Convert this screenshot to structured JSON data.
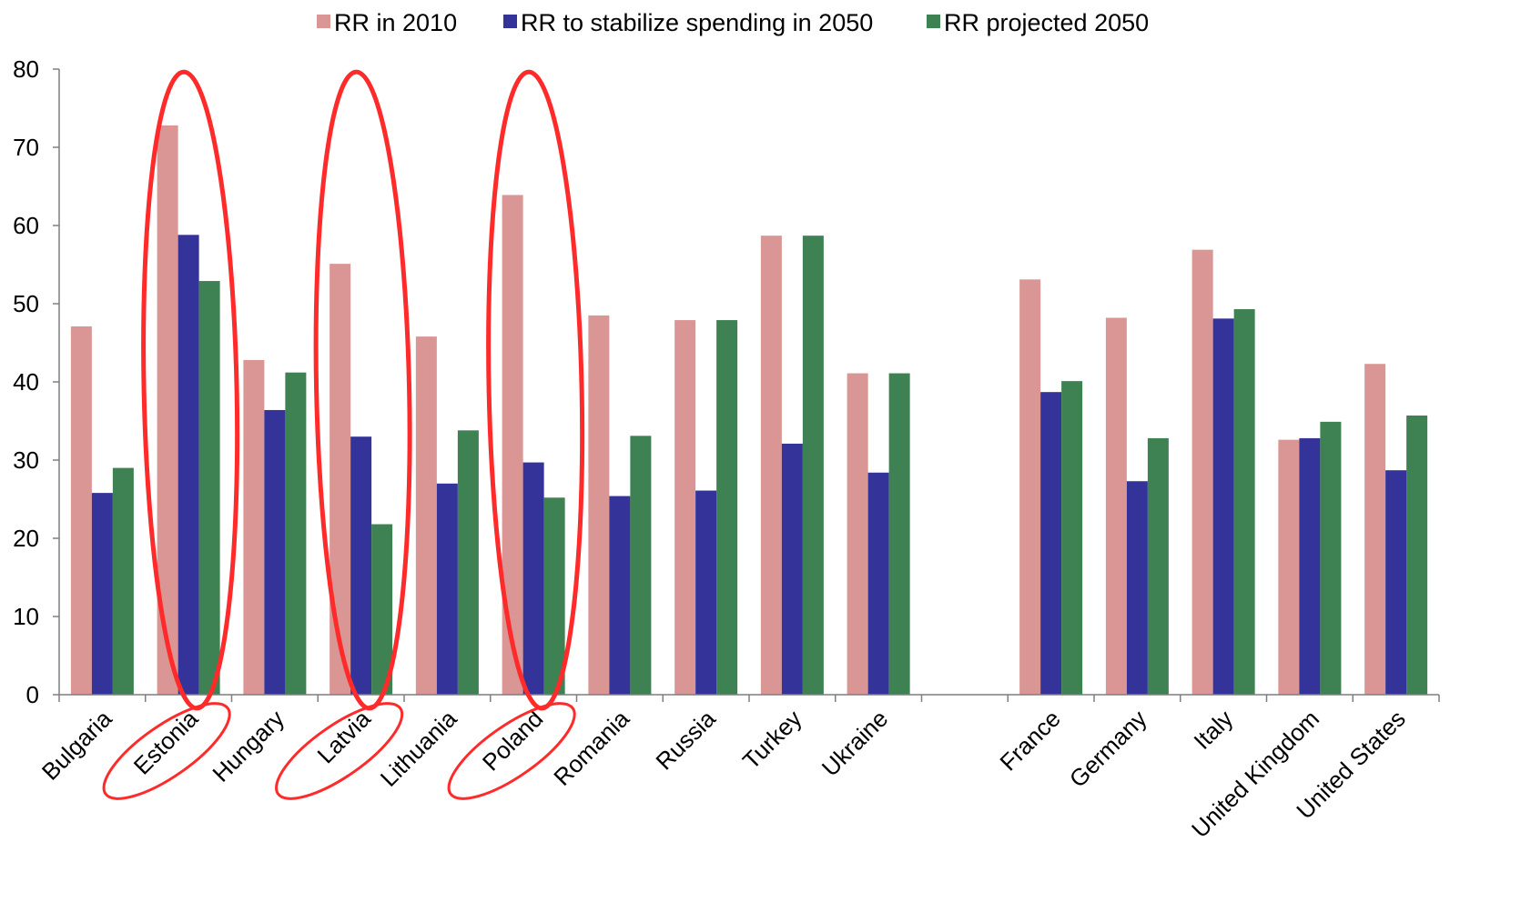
{
  "chart_data": {
    "type": "bar",
    "title": "",
    "xlabel": "",
    "ylabel": "",
    "ylim": [
      0,
      80
    ],
    "yticks": [
      0,
      10,
      20,
      30,
      40,
      50,
      60,
      70,
      80
    ],
    "grid": false,
    "legend_position": "top",
    "categories": [
      "Bulgaria",
      "Estonia",
      "Hungary",
      "Latvia",
      "Lithuania",
      "Poland",
      "Romania",
      "Russia",
      "Turkey",
      "Ukraine",
      "",
      "France",
      "Germany",
      "Italy",
      "United Kingdom",
      "United States"
    ],
    "series": [
      {
        "name": "RR in 2010",
        "color": "#d99694",
        "values": [
          47.1,
          72.8,
          42.8,
          55.1,
          45.8,
          63.9,
          48.5,
          47.9,
          58.7,
          41.1,
          null,
          53.1,
          48.2,
          56.9,
          32.6,
          42.3
        ]
      },
      {
        "name": "RR to stabilize spending in 2050",
        "color": "#333399",
        "values": [
          25.8,
          58.8,
          36.4,
          33.0,
          27.0,
          29.7,
          25.4,
          26.1,
          32.1,
          28.4,
          null,
          38.7,
          27.3,
          48.1,
          32.8,
          28.7
        ]
      },
      {
        "name": "RR projected 2050",
        "color": "#3e8152",
        "values": [
          29.0,
          52.9,
          41.2,
          21.8,
          33.8,
          25.2,
          33.1,
          47.9,
          58.7,
          41.1,
          null,
          40.1,
          32.8,
          49.3,
          34.9,
          35.7
        ]
      }
    ],
    "annotations": {
      "highlight_color": "#ff2a2a",
      "highlighted_categories": [
        "Estonia",
        "Latvia",
        "Poland"
      ]
    }
  }
}
